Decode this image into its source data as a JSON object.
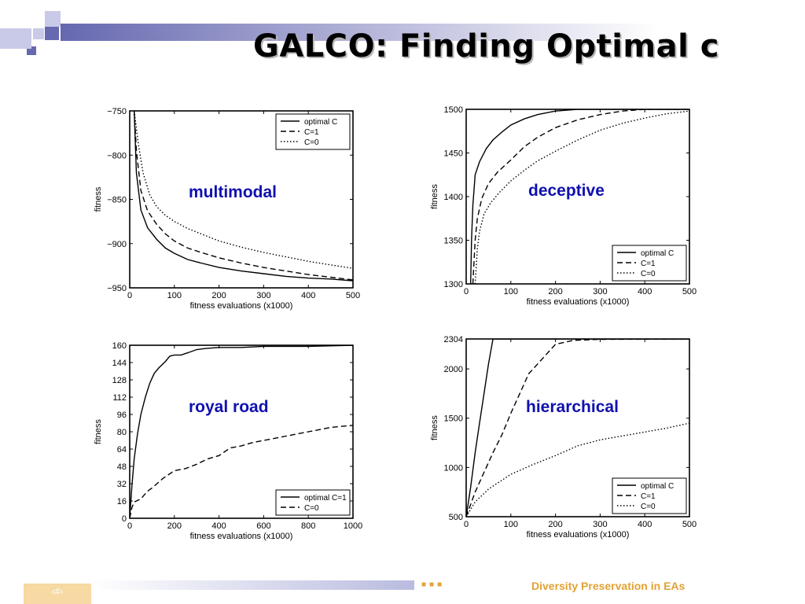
{
  "slide": {
    "title": "GALCO: Finding Optimal c",
    "page_number": "‹#›",
    "footer": "Diversity Preservation in EAs"
  },
  "colors": {
    "deco_dark": "#6668b0",
    "deco_light": "#c9cae8",
    "overlay_text": "#1010b0",
    "footer_text": "#e1a235",
    "page_box": "#f6d9a3"
  },
  "chart_data": [
    {
      "type": "line",
      "overlay_label": "multimodal",
      "xlabel": "fitness evaluations (x1000)",
      "ylabel": "fitness",
      "xlim": [
        0,
        500
      ],
      "ylim": [
        -950,
        -750
      ],
      "xticks": [
        0,
        100,
        200,
        300,
        400,
        500
      ],
      "yticks": [
        -750,
        -800,
        -850,
        -900,
        -950
      ],
      "legend": "top-right",
      "series": [
        {
          "name": "optimal C",
          "style": "solid",
          "x": [
            10,
            15,
            25,
            40,
            60,
            80,
            100,
            130,
            160,
            200,
            250,
            300,
            350,
            400,
            450,
            500
          ],
          "y": [
            -750,
            -820,
            -862,
            -882,
            -895,
            -905,
            -911,
            -918,
            -922,
            -927,
            -931,
            -934,
            -937,
            -939,
            -940,
            -942
          ]
        },
        {
          "name": "C=1",
          "style": "dashed",
          "x": [
            10,
            15,
            25,
            40,
            60,
            80,
            100,
            130,
            160,
            200,
            250,
            300,
            350,
            400,
            450,
            500
          ],
          "y": [
            -750,
            -795,
            -840,
            -863,
            -878,
            -889,
            -897,
            -905,
            -910,
            -916,
            -922,
            -927,
            -931,
            -935,
            -938,
            -941
          ]
        },
        {
          "name": "C=0",
          "style": "dotted",
          "x": [
            10,
            20,
            30,
            45,
            60,
            80,
            100,
            130,
            160,
            200,
            250,
            300,
            350,
            400,
            450,
            500
          ],
          "y": [
            -750,
            -790,
            -820,
            -845,
            -858,
            -868,
            -875,
            -883,
            -889,
            -897,
            -904,
            -910,
            -915,
            -920,
            -924,
            -928
          ]
        }
      ]
    },
    {
      "type": "line",
      "overlay_label": "deceptive",
      "xlabel": "fitness evaluations (x1000)",
      "ylabel": "fitness",
      "xlim": [
        0,
        500
      ],
      "ylim": [
        1300,
        1500
      ],
      "xticks": [
        0,
        100,
        200,
        300,
        400,
        500
      ],
      "yticks": [
        1500,
        1450,
        1400,
        1350,
        1300
      ],
      "legend": "bottom-right",
      "series": [
        {
          "name": "optimal C",
          "style": "solid",
          "x": [
            10,
            12,
            15,
            20,
            30,
            45,
            60,
            80,
            100,
            130,
            160,
            200,
            250,
            300,
            500
          ],
          "y": [
            1300,
            1350,
            1390,
            1425,
            1440,
            1455,
            1465,
            1474,
            1482,
            1489,
            1494,
            1498,
            1500,
            1500,
            1500
          ]
        },
        {
          "name": "C=1",
          "style": "dashed",
          "x": [
            15,
            20,
            25,
            35,
            50,
            70,
            100,
            130,
            160,
            200,
            250,
            300,
            350,
            400,
            500
          ],
          "y": [
            1300,
            1350,
            1375,
            1398,
            1415,
            1428,
            1442,
            1457,
            1468,
            1479,
            1488,
            1494,
            1498,
            1500,
            1500
          ]
        },
        {
          "name": "C=0",
          "style": "dotted",
          "x": [
            20,
            25,
            30,
            40,
            55,
            75,
            100,
            130,
            160,
            200,
            250,
            300,
            350,
            400,
            450,
            500
          ],
          "y": [
            1300,
            1340,
            1360,
            1380,
            1393,
            1405,
            1418,
            1430,
            1441,
            1452,
            1465,
            1476,
            1484,
            1490,
            1495,
            1498
          ]
        }
      ]
    },
    {
      "type": "line",
      "overlay_label": "royal road",
      "xlabel": "fitness evaluations (x1000)",
      "ylabel": "fitness",
      "xlim": [
        0,
        1000
      ],
      "ylim": [
        0,
        160
      ],
      "xticks": [
        0,
        200,
        400,
        600,
        800,
        1000
      ],
      "yticks": [
        160,
        144,
        128,
        112,
        96,
        80,
        64,
        48,
        32,
        16,
        0
      ],
      "legend": "bottom-right",
      "series": [
        {
          "name": "optimal C=1",
          "style": "solid",
          "x": [
            0,
            10,
            20,
            35,
            50,
            70,
            90,
            110,
            130,
            160,
            180,
            200,
            230,
            260,
            300,
            340,
            400,
            500,
            600,
            700,
            800,
            1000
          ],
          "y": [
            0,
            30,
            55,
            78,
            96,
            112,
            125,
            134,
            139,
            145,
            150,
            151,
            151,
            153,
            156,
            157,
            158,
            158,
            159,
            159,
            159,
            160
          ]
        },
        {
          "name": "C=0",
          "style": "dashed",
          "x": [
            0,
            10,
            20,
            30,
            50,
            80,
            100,
            150,
            200,
            250,
            300,
            350,
            400,
            450,
            500,
            550,
            600,
            650,
            700,
            800,
            900,
            950,
            1000
          ],
          "y": [
            0,
            10,
            15,
            16,
            18,
            25,
            28,
            37,
            44,
            46,
            50,
            55,
            58,
            65,
            67,
            70,
            72,
            74,
            76,
            80,
            84,
            85,
            86
          ]
        }
      ]
    },
    {
      "type": "line",
      "overlay_label": "hierarchical",
      "xlabel": "fitness evaluations (x1000)",
      "ylabel": "fitness",
      "xlim": [
        0,
        500
      ],
      "ylim": [
        500,
        2304
      ],
      "xticks": [
        0,
        100,
        200,
        300,
        400,
        500
      ],
      "yticks": [
        2304,
        2000,
        1500,
        1000,
        500
      ],
      "legend": "bottom-right",
      "series": [
        {
          "name": "optimal C",
          "style": "solid",
          "x": [
            0,
            10,
            20,
            30,
            40,
            50,
            60,
            70,
            500
          ],
          "y": [
            500,
            800,
            1150,
            1450,
            1750,
            2050,
            2304,
            2304,
            2304
          ]
        },
        {
          "name": "C=1",
          "style": "dashed",
          "x": [
            0,
            20,
            40,
            60,
            80,
            100,
            120,
            140,
            160,
            180,
            200,
            240,
            300,
            500
          ],
          "y": [
            500,
            750,
            950,
            1150,
            1330,
            1550,
            1750,
            1950,
            2050,
            2150,
            2250,
            2290,
            2300,
            2304
          ]
        },
        {
          "name": "C=0",
          "style": "dotted",
          "x": [
            0,
            20,
            50,
            100,
            150,
            200,
            250,
            300,
            350,
            400,
            450,
            500
          ],
          "y": [
            500,
            650,
            780,
            930,
            1030,
            1120,
            1220,
            1280,
            1320,
            1360,
            1400,
            1450
          ]
        }
      ]
    }
  ]
}
